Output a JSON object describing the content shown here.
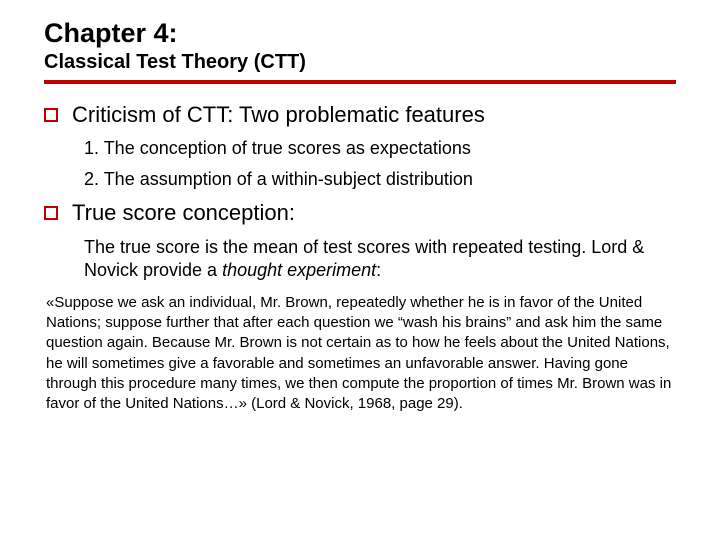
{
  "colors": {
    "accent": "#c00000",
    "text": "#000000",
    "background": "#ffffff"
  },
  "typography": {
    "family": "Verdana",
    "title_size_pt": 27,
    "subtitle_size_pt": 20,
    "heading_size_pt": 22,
    "body_size_pt": 18,
    "quote_size_pt": 15
  },
  "header": {
    "chapter": "Chapter 4:",
    "subtitle": "Classical Test Theory (CTT)"
  },
  "sections": [
    {
      "heading": "Criticism of CTT: Two problematic features",
      "items": [
        "1. The conception of true scores as expectations",
        "2. The assumption of a within-subject distribution"
      ]
    },
    {
      "heading": "True score conception:",
      "para_prefix": "The true score is the mean of test scores with repeated testing. Lord & Novick provide a ",
      "para_italic": "thought experiment",
      "para_suffix": ":"
    }
  ],
  "quote": "«Suppose we ask an individual, Mr. Brown, repeatedly whether he is in favor of the United Nations; suppose further that after each question we “wash his brains” and ask him the same question again. Because Mr. Brown is not certain as to how he feels about the United Nations, he will sometimes give a favorable and sometimes an unfavorable answer. Having gone through this procedure many times, we then compute the proportion of times Mr. Brown was in favor of the United Nations…» (Lord & Novick, 1968, page 29)."
}
